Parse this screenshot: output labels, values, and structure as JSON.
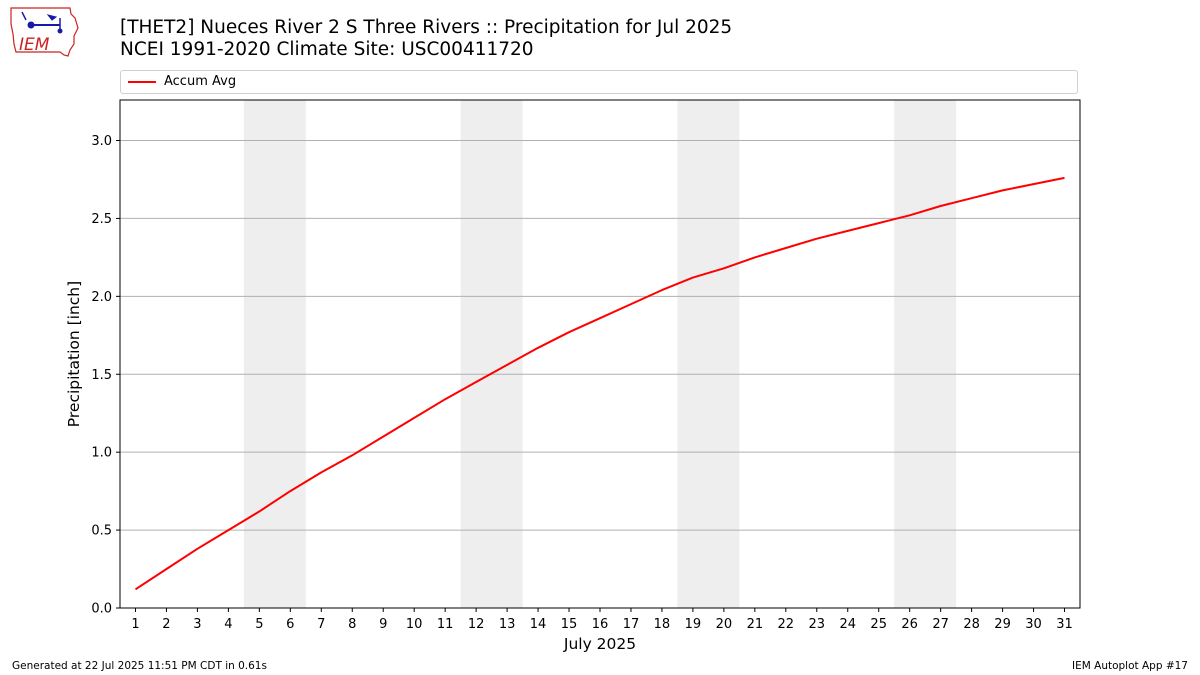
{
  "header": {
    "title_line1": "[THET2] Nueces River 2 S Three Rivers :: Precipitation for Jul 2025",
    "title_line2": "NCEI 1991-2020 Climate Site: USC00411720"
  },
  "logo": {
    "text": "IEM",
    "icon": "iem-iowa-logo"
  },
  "footer": {
    "generated": "Generated at 22 Jul 2025 11:51 PM CDT in 0.61s",
    "app": "IEM Autoplot App #17"
  },
  "colors": {
    "line": "#ff0000",
    "weekend_band": "#eeeeee",
    "grid": "#b0b0b0",
    "logo": "#cc2222",
    "logo_icon": "#1a1aa8"
  },
  "chart_data": {
    "type": "line",
    "xlabel": "July 2025",
    "ylabel": "Precipitation [inch]",
    "xlim": [
      0.5,
      31.5
    ],
    "ylim": [
      0,
      3.26
    ],
    "yticks": [
      0.0,
      0.5,
      1.0,
      1.5,
      2.0,
      2.5,
      3.0
    ],
    "ytick_labels": [
      "0.0",
      "0.5",
      "1.0",
      "1.5",
      "2.0",
      "2.5",
      "3.0"
    ],
    "x": [
      1,
      2,
      3,
      4,
      5,
      6,
      7,
      8,
      9,
      10,
      11,
      12,
      13,
      14,
      15,
      16,
      17,
      18,
      19,
      20,
      21,
      22,
      23,
      24,
      25,
      26,
      27,
      28,
      29,
      30,
      31
    ],
    "xtick_labels": [
      "1",
      "2",
      "3",
      "4",
      "5",
      "6",
      "7",
      "8",
      "9",
      "10",
      "11",
      "12",
      "13",
      "14",
      "15",
      "16",
      "17",
      "18",
      "19",
      "20",
      "21",
      "22",
      "23",
      "24",
      "25",
      "26",
      "27",
      "28",
      "29",
      "30",
      "31"
    ],
    "grid": "y-axis",
    "legend": "top-left, above plot",
    "weekend_bands": [
      [
        4.5,
        6.5
      ],
      [
        11.5,
        13.5
      ],
      [
        18.5,
        20.5
      ],
      [
        25.5,
        27.5
      ]
    ],
    "series": [
      {
        "name": "Accum Avg",
        "color": "#ff0000",
        "values": [
          0.12,
          0.25,
          0.38,
          0.5,
          0.62,
          0.75,
          0.87,
          0.98,
          1.1,
          1.22,
          1.34,
          1.45,
          1.56,
          1.67,
          1.77,
          1.86,
          1.95,
          2.04,
          2.12,
          2.18,
          2.25,
          2.31,
          2.37,
          2.42,
          2.47,
          2.52,
          2.58,
          2.63,
          2.68,
          2.72,
          2.76
        ]
      }
    ]
  }
}
